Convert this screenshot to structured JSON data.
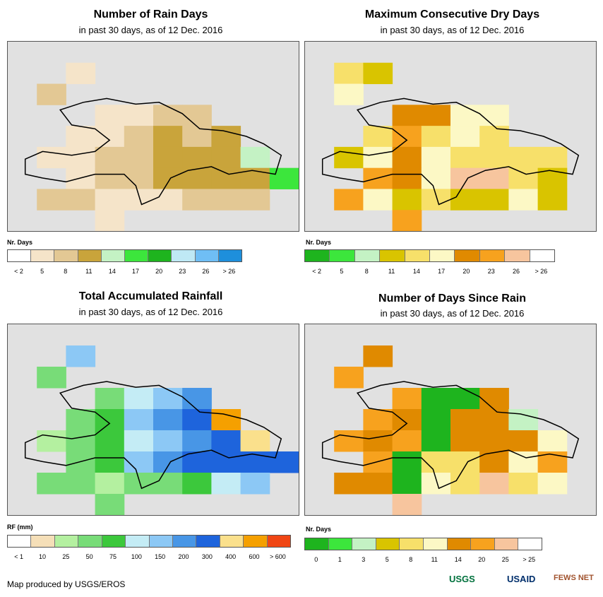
{
  "panels": [
    {
      "title": "Number of Rain Days",
      "subtitle": "in past 30 days, as of 12 Dec. 2016",
      "legend_title": "Nr. Days",
      "legend_ticks": [
        "< 2",
        "5",
        "8",
        "11",
        "14",
        "17",
        "20",
        "23",
        "26",
        "> 26"
      ],
      "legend_colors": [
        "#ffffff",
        "#f5e4c9",
        "#e3c894",
        "#c9a43b",
        "#c4f2c4",
        "#3ce63c",
        "#1eb41e",
        "#bfe9f5",
        "#6fbef5",
        "#1e8fdc"
      ],
      "grid": [
        "..........",
        "..1.......",
        ".2........",
        "...1122...",
        "..112323..",
        ".11223334.",
        "..12233335",
        ".22111222.",
        "...1......"
      ]
    },
    {
      "title": "Maximum Consecutive Dry Days",
      "subtitle": "in past 30 days, as of 12 Dec. 2016",
      "legend_title": "Nr. Days",
      "legend_ticks": [
        "< 2",
        "5",
        "8",
        "11",
        "14",
        "17",
        "20",
        "23",
        "26",
        "> 26"
      ],
      "legend_colors": [
        "#1eb41e",
        "#3ce63c",
        "#c4f2c4",
        "#d9c400",
        "#f7e06a",
        "#fcf8c5",
        "#e08a00",
        "#f7a21e",
        "#f7c59e",
        "#ffffff"
      ],
      "grid": [
        "..........",
        ".43.......",
        ".5........",
        "...6655...",
        "..47454...",
        ".35654444.",
        "..7658843.",
        ".75343353.",
        "...7......"
      ]
    },
    {
      "title": "Total Accumulated Rainfall",
      "subtitle": "in past 30 days, as of 12 Dec. 2016",
      "legend_title": "RF (mm)",
      "legend_ticks": [
        "< 1",
        "10",
        "25",
        "50",
        "75",
        "100",
        "150",
        "200",
        "300",
        "400",
        "600",
        "> 600"
      ],
      "legend_colors": [
        "#ffffff",
        "#f5dfb8",
        "#b4f0a0",
        "#78dc78",
        "#3cc83c",
        "#c4ecf5",
        "#8cc8f5",
        "#4896e6",
        "#1e64dc",
        "#fae08c",
        "#f5a000",
        "#f04614"
      ],
      "grid": [
        "..........",
        "..6.......",
        ".3........",
        "...3567...",
        "..34678A..",
        ".23456789.",
        "..34678888",
        ".33233456.",
        "...3......"
      ]
    },
    {
      "title": "Number of Days Since Rain",
      "subtitle": "in past 30 days, as of 12 Dec. 2016",
      "legend_title": "Nr. Days",
      "legend_ticks": [
        "0",
        "1",
        "3",
        "5",
        "8",
        "11",
        "14",
        "20",
        "25",
        "> 25"
      ],
      "legend_colors": [
        "#1eb41e",
        "#3ce63c",
        "#c4f2c4",
        "#d9c400",
        "#f7e06a",
        "#fcf8c5",
        "#e08a00",
        "#f7a21e",
        "#f7c59e",
        "#ffffff"
      ],
      "grid": [
        "..........",
        "..6.......",
        ".7........",
        "...7006...",
        "..760662..",
        ".76706665.",
        "..7044657.",
        ".66054845.",
        "...8......"
      ]
    }
  ],
  "credit": "Map produced by USGS/EROS",
  "logos": [
    "USGS",
    "USAID",
    "FEWS NET"
  ]
}
